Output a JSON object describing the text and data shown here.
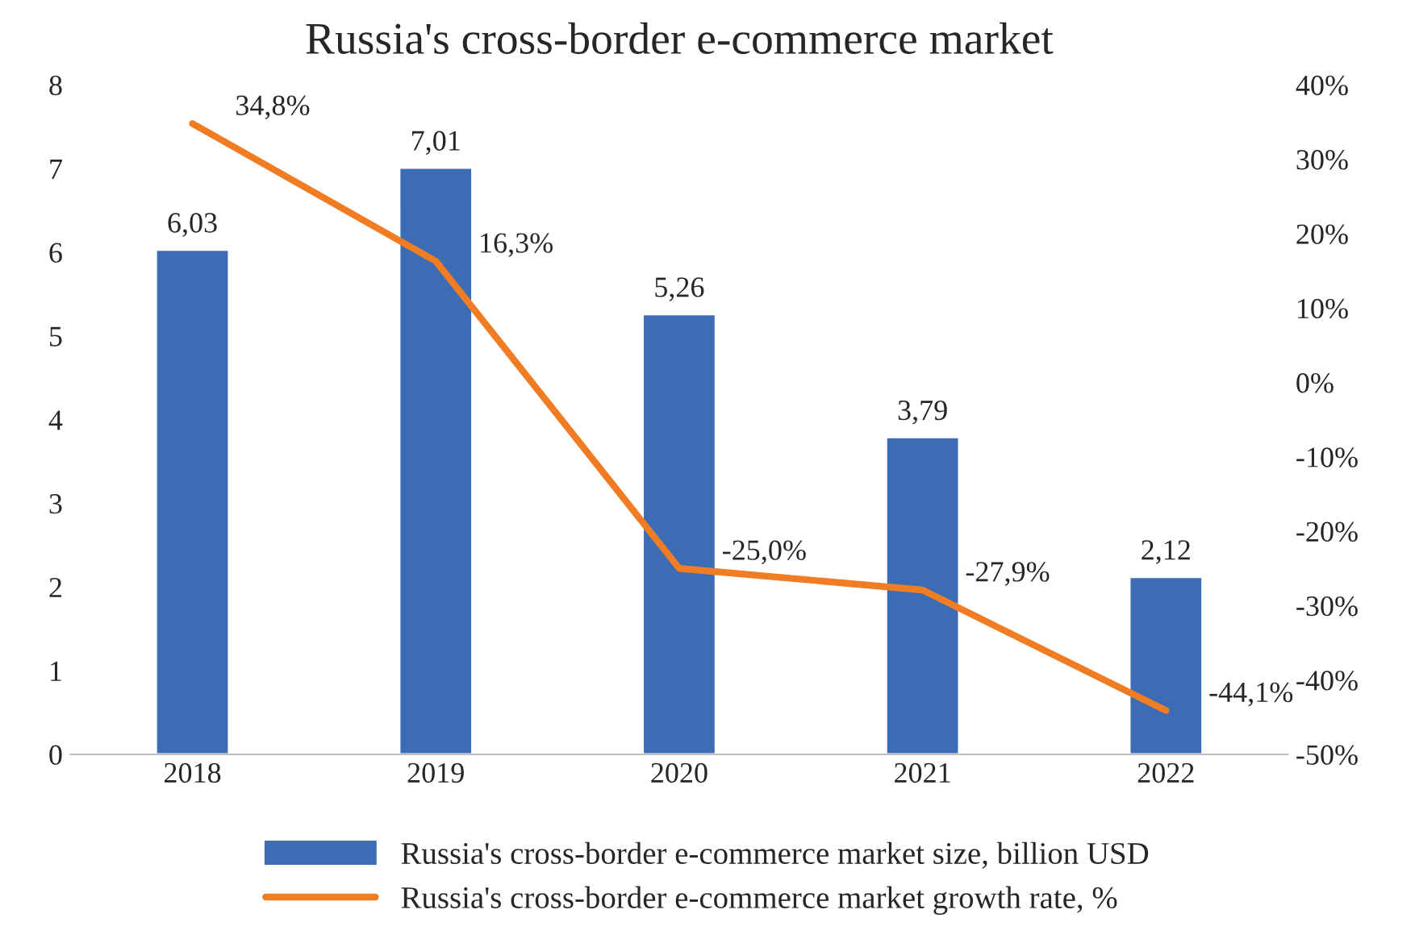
{
  "chart_data": {
    "type": "bar",
    "title": "Russia's cross-border e-commerce market",
    "categories": [
      "2018",
      "2019",
      "2020",
      "2021",
      "2022"
    ],
    "series": [
      {
        "name": "Russia's cross-border e-commerce market size, billion USD",
        "color": "#3c6cb4",
        "values": [
          6.03,
          7.01,
          5.26,
          3.79,
          2.12
        ],
        "value_labels": [
          "6,03",
          "7,01",
          "5,26",
          "3,79",
          "2,12"
        ]
      },
      {
        "name": "Russia's cross-border e-commerce market growth rate, %",
        "type": "line",
        "axis": "y2",
        "color": "#f07c24",
        "values": [
          34.8,
          16.3,
          -25.0,
          -27.9,
          -44.1
        ],
        "value_labels": [
          "34,8%",
          "16,3%",
          "-25,0%",
          "-27,9%",
          "-44,1%"
        ]
      }
    ],
    "ylim": [
      0,
      8
    ],
    "yticks": [
      0,
      1,
      2,
      3,
      4,
      5,
      6,
      7,
      8
    ],
    "y2lim": [
      -50,
      40
    ],
    "y2ticks": [
      {
        "value": -50,
        "label": "-50%"
      },
      {
        "value": -40,
        "label": "-40%"
      },
      {
        "value": -30,
        "label": "-30%"
      },
      {
        "value": -20,
        "label": "-20%"
      },
      {
        "value": -10,
        "label": "-10%"
      },
      {
        "value": 0,
        "label": "0%"
      },
      {
        "value": 10,
        "label": "10%"
      },
      {
        "value": 20,
        "label": "20%"
      },
      {
        "value": 30,
        "label": "30%"
      },
      {
        "value": 40,
        "label": "40%"
      }
    ],
    "grid": false,
    "legend": "bottom",
    "marker": "none",
    "line_style": "solid"
  }
}
